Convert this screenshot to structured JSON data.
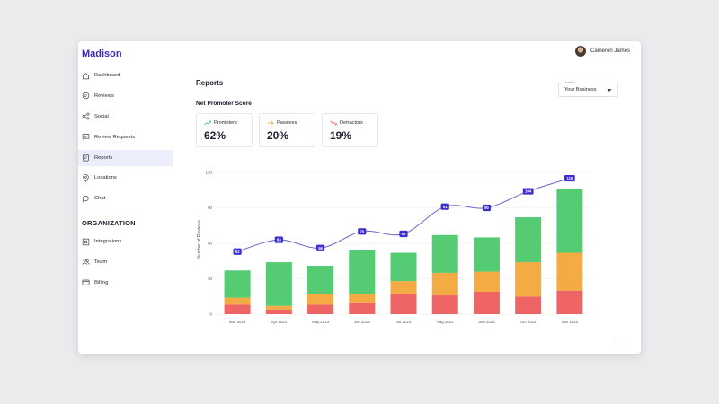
{
  "app": {
    "name": "Madison"
  },
  "user": {
    "name": "Cameron James"
  },
  "sidebar": {
    "items": [
      {
        "label": "Dashboard",
        "icon": "house-icon"
      },
      {
        "label": "Reviews",
        "icon": "comment-icon"
      },
      {
        "label": "Social",
        "icon": "share-icon"
      },
      {
        "label": "Review Requests",
        "icon": "chat-box-icon"
      },
      {
        "label": "Reports",
        "icon": "report-icon",
        "active": true
      },
      {
        "label": "Locations",
        "icon": "location-pin-icon"
      },
      {
        "label": "Chat",
        "icon": "chat-bubbles-icon"
      }
    ],
    "org_title": "ORGANIZATION",
    "org_items": [
      {
        "label": "Integrations",
        "icon": "integrations-icon"
      },
      {
        "label": "Team",
        "icon": "team-icon"
      },
      {
        "label": "Billing",
        "icon": "billing-card-icon"
      }
    ]
  },
  "main": {
    "title": "Reports",
    "location": {
      "label": "Location",
      "value": "Your Business"
    },
    "nps_title": "Net Promoter Score",
    "cards": [
      {
        "label": "Promoters",
        "value": "62%",
        "icon": "trend-up-icon",
        "color": "#3fbf6a"
      },
      {
        "label": "Passives",
        "value": "20%",
        "icon": "arrow-right-icon",
        "color": "#f2a23a"
      },
      {
        "label": "Detractors",
        "value": "19%",
        "icon": "trend-down-icon",
        "color": "#ec5b5b"
      }
    ],
    "more": "..."
  },
  "colors": {
    "promoters": "#55cc74",
    "passives": "#f4ab43",
    "detractors": "#ef6464",
    "line": "#6e66c9",
    "label_bg": "#3b2fd0",
    "brand": "#3b2bb5"
  },
  "chart_data": {
    "type": "bar",
    "stacked": true,
    "categories": [
      "Mar 2023",
      "Apr 2023",
      "May 2023",
      "Jun 2023",
      "Jul 2023",
      "Aug 2023",
      "Sep 2023",
      "Oct 2023",
      "Nov 2023"
    ],
    "series": [
      {
        "key": "detractors",
        "values": [
          8,
          4,
          8,
          10,
          17,
          16,
          19,
          15,
          20
        ]
      },
      {
        "key": "passives",
        "values": [
          6,
          3,
          9,
          7,
          11,
          19,
          17,
          29,
          32
        ]
      },
      {
        "key": "promoters",
        "values": [
          23,
          37,
          24,
          37,
          24,
          32,
          29,
          38,
          54
        ]
      }
    ],
    "line_series": {
      "values": [
        53,
        63,
        56,
        70,
        68,
        91,
        90,
        104,
        115
      ],
      "labels": [
        "53",
        "63",
        "56",
        "70",
        "68",
        "91",
        "90",
        "104",
        "115"
      ]
    },
    "ylabel": "Number of Reviews",
    "ylim": [
      0,
      120
    ],
    "yticks": [
      0,
      30,
      60,
      90,
      120
    ],
    "grid": true
  }
}
